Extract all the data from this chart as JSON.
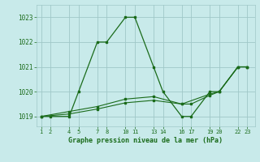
{
  "title": "Graphe pression niveau de la mer (hPa)",
  "bg_color": "#c8eaea",
  "plot_bg_color": "#c8eaea",
  "grid_color": "#a0c8c8",
  "line_color": "#1a6b1a",
  "tick_label_color": "#1a6b1a",
  "xlabel_color": "#1a6b1a",
  "series": [
    {
      "x": [
        1,
        2,
        4,
        5,
        7,
        8,
        10,
        11,
        13,
        14,
        16,
        17,
        19,
        20,
        22,
        23
      ],
      "y": [
        1019,
        1019,
        1019,
        1020,
        1022,
        1022,
        1023,
        1023,
        1021,
        1020,
        1019,
        1019,
        1020,
        1020,
        1021,
        1021
      ],
      "marker": "s",
      "markersize": 2.0,
      "linewidth": 0.9
    },
    {
      "x": [
        1,
        4,
        7,
        10,
        13,
        16,
        19,
        20,
        22,
        23
      ],
      "y": [
        1019,
        1019.2,
        1019.4,
        1019.7,
        1019.8,
        1019.5,
        1019.9,
        1020.0,
        1021.0,
        1021.0
      ],
      "marker": "s",
      "markersize": 1.8,
      "linewidth": 0.8
    },
    {
      "x": [
        1,
        4,
        7,
        10,
        13,
        16,
        17,
        19,
        20,
        22,
        23
      ],
      "y": [
        1019,
        1019.1,
        1019.3,
        1019.55,
        1019.65,
        1019.5,
        1019.5,
        1019.85,
        1020.0,
        1021.0,
        1021.0
      ],
      "marker": "s",
      "markersize": 1.8,
      "linewidth": 0.8
    }
  ],
  "xticks": [
    1,
    2,
    4,
    5,
    7,
    8,
    10,
    11,
    13,
    14,
    16,
    17,
    19,
    20,
    22,
    23
  ],
  "xtick_labels": [
    "1",
    "2",
    "4",
    "5",
    "7",
    "8",
    "10",
    "11",
    "13",
    "14",
    "16",
    "17",
    "19",
    "20",
    "22",
    "23"
  ],
  "yticks": [
    1019,
    1020,
    1021,
    1022,
    1023
  ],
  "ylim": [
    1018.6,
    1023.5
  ],
  "xlim": [
    0.5,
    23.8
  ]
}
